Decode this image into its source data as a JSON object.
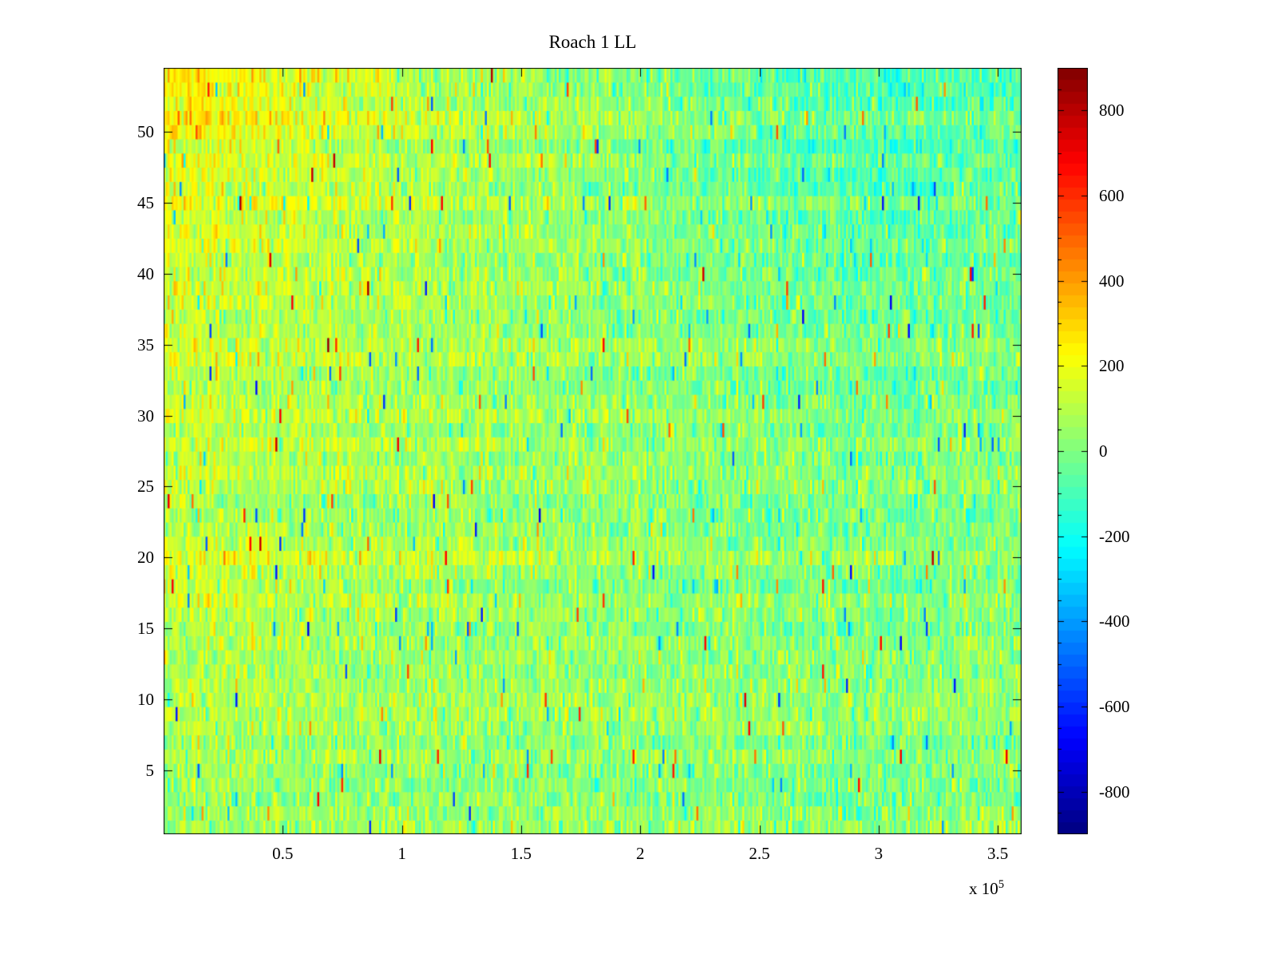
{
  "figure": {
    "background_color": "#ffffff",
    "axes_color": "#000000"
  },
  "chart_data": {
    "type": "heatmap",
    "title": "Roach 1 LL",
    "xlabel": "",
    "ylabel": "",
    "x_range": [
      0,
      360000
    ],
    "x_ticks": [
      50000,
      100000,
      150000,
      200000,
      250000,
      300000,
      350000
    ],
    "x_tick_labels": [
      "0.5",
      "1",
      "1.5",
      "2",
      "2.5",
      "3",
      "3.5"
    ],
    "x_scale_label": "x 10",
    "x_scale_exponent": "5",
    "y_range": [
      0.5,
      54.5
    ],
    "y_ticks": [
      5,
      10,
      15,
      20,
      25,
      30,
      35,
      40,
      45,
      50
    ],
    "y_tick_labels": [
      "5",
      "10",
      "15",
      "20",
      "25",
      "30",
      "35",
      "40",
      "45",
      "50"
    ],
    "rows": 54,
    "cols": 430,
    "colormap": "jet",
    "color_limits": [
      -900,
      900
    ],
    "colorbar_levels": 64,
    "colorbar_ticks": [
      800,
      600,
      400,
      200,
      0,
      -200,
      -400,
      -600,
      -800
    ],
    "colorbar_tick_labels": [
      "800",
      "600",
      "400",
      "200",
      "0",
      "-200",
      "-400",
      "-600",
      "-800"
    ],
    "legend_position": "right-colorbar",
    "grid": false,
    "noise": {
      "seed": 1337,
      "std": 85,
      "row_offset_std": 22,
      "spike_prob": 0.015,
      "spike_min": 250,
      "spike_scale": 400
    },
    "base_mean_grid": {
      "description": "Approximate local mean values of the heatmap, rows ordered bottom-to-top (y=1 to y=54), columns left-to-right (x=0 to x=3.6e5); full field is this grid bilinearly interpolated plus gaussian noise.",
      "values": [
        [
          60,
          50,
          45,
          40,
          30,
          25,
          20,
          40
        ],
        [
          70,
          55,
          45,
          40,
          30,
          20,
          15,
          30
        ],
        [
          85,
          65,
          50,
          40,
          30,
          20,
          10,
          25
        ],
        [
          175,
          140,
          95,
          60,
          40,
          20,
          10,
          20
        ],
        [
          115,
          85,
          65,
          50,
          30,
          10,
          0,
          20
        ],
        [
          125,
          95,
          70,
          50,
          30,
          0,
          -10,
          10
        ],
        [
          145,
          105,
          80,
          55,
          25,
          -10,
          -30,
          0
        ],
        [
          165,
          125,
          90,
          60,
          20,
          -30,
          -50,
          -20
        ],
        [
          195,
          150,
          100,
          60,
          10,
          -50,
          -70,
          -40
        ],
        [
          270,
          190,
          115,
          60,
          10,
          -60,
          -90,
          -50
        ]
      ]
    }
  }
}
